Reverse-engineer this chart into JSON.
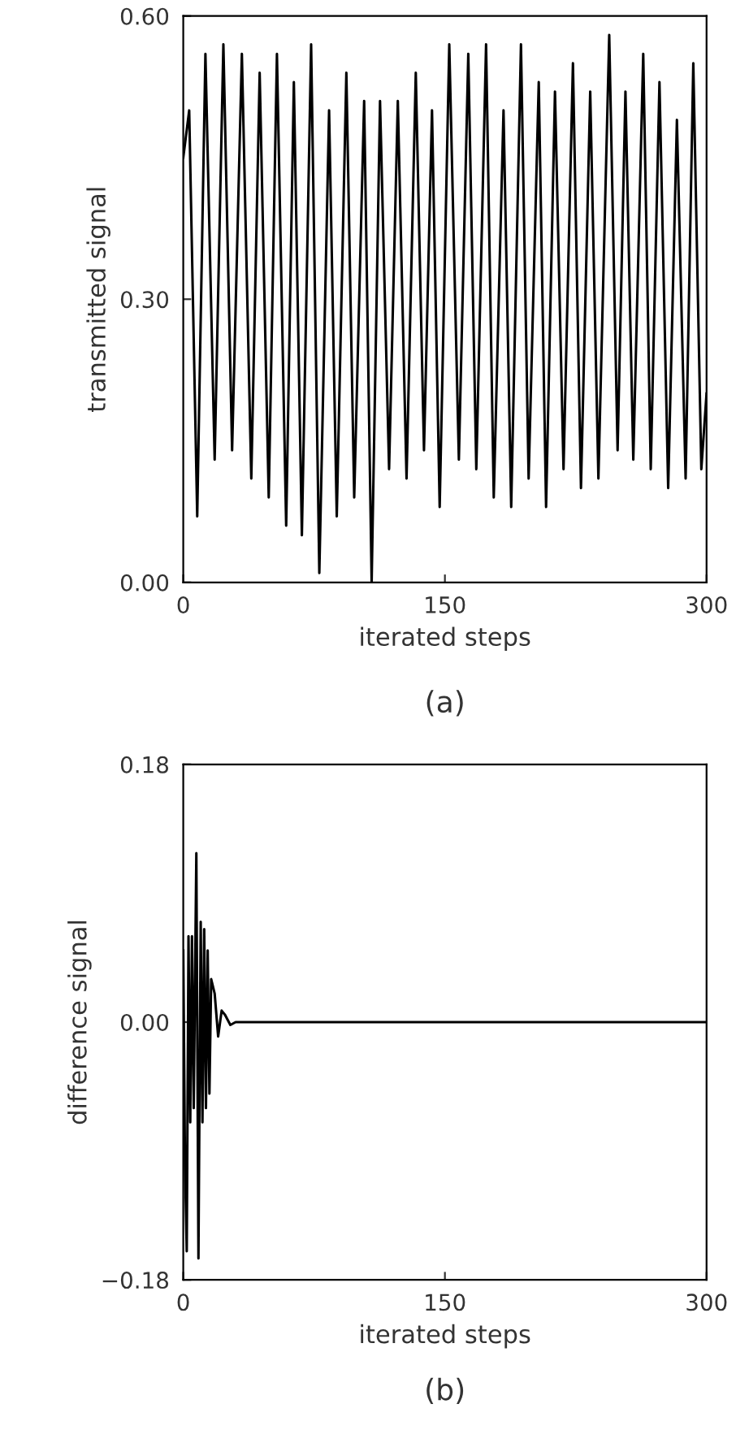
{
  "chart_data": [
    {
      "type": "line",
      "xlabel": "iterated steps",
      "ylabel": "transmitted signal",
      "annotations": [
        "(a)"
      ],
      "xlim": [
        0,
        300
      ],
      "ylim": [
        0,
        0.6
      ],
      "xticks": [
        0,
        150,
        300
      ],
      "yticks": [
        {
          "value": 0,
          "label": "0.00"
        },
        {
          "value": 0.3,
          "label": "0.30"
        },
        {
          "value": 0.6,
          "label": "0.60"
        }
      ],
      "grid": false,
      "legend": false,
      "marker": "none",
      "line_style": "solid",
      "series": [
        {
          "color": "#000000",
          "x": [
            0,
            3.4,
            8,
            12.7,
            18,
            23,
            28,
            33.6,
            39,
            43.8,
            49,
            53.7,
            59,
            63.4,
            68,
            73.3,
            78,
            83.6,
            88,
            93.5,
            98,
            103.7,
            108,
            112.8,
            118,
            123,
            128,
            133.3,
            138,
            142.6,
            147,
            152.5,
            158,
            163.4,
            168,
            173.6,
            178,
            183.6,
            188,
            193.6,
            198,
            203.8,
            208,
            213.1,
            218,
            223.4,
            228,
            233.3,
            238,
            244.2,
            249,
            253.5,
            258,
            263.7,
            268,
            273,
            278,
            283,
            288,
            292.4,
            297,
            300
          ],
          "values": [
            0.45,
            0.5,
            0.07,
            0.56,
            0.13,
            0.57,
            0.14,
            0.56,
            0.11,
            0.54,
            0.09,
            0.56,
            0.06,
            0.53,
            0.05,
            0.57,
            0.01,
            0.5,
            0.07,
            0.54,
            0.09,
            0.51,
            0.0,
            0.51,
            0.12,
            0.51,
            0.11,
            0.54,
            0.14,
            0.5,
            0.08,
            0.57,
            0.13,
            0.56,
            0.12,
            0.57,
            0.09,
            0.5,
            0.08,
            0.57,
            0.11,
            0.53,
            0.08,
            0.52,
            0.12,
            0.55,
            0.1,
            0.52,
            0.11,
            0.58,
            0.14,
            0.52,
            0.13,
            0.56,
            0.12,
            0.53,
            0.1,
            0.49,
            0.11,
            0.55,
            0.12,
            0.2
          ]
        }
      ]
    },
    {
      "type": "line",
      "xlabel": "iterated steps",
      "ylabel": "difference signal",
      "annotations": [
        "(b)"
      ],
      "xlim": [
        0,
        300
      ],
      "ylim": [
        -0.18,
        0.18
      ],
      "xticks": [
        0,
        150,
        300
      ],
      "yticks": [
        {
          "value": -0.18,
          "label": "−0.18"
        },
        {
          "value": 0,
          "label": "0.00"
        },
        {
          "value": 0.18,
          "label": "0.18"
        }
      ],
      "grid": false,
      "legend": false,
      "marker": "none",
      "line_style": "solid",
      "series": [
        {
          "color": "#000000",
          "x": [
            0,
            1,
            2,
            3,
            4,
            5,
            6,
            7.5,
            8.7,
            10,
            11,
            12,
            13,
            14,
            15,
            16,
            18,
            20,
            22,
            24,
            27,
            30,
            300
          ],
          "values": [
            0.05,
            -0.1,
            -0.16,
            0.06,
            -0.07,
            0.06,
            -0.06,
            0.118,
            -0.165,
            0.07,
            -0.07,
            0.065,
            -0.06,
            0.05,
            -0.05,
            0.03,
            0.02,
            -0.01,
            0.008,
            0.005,
            -0.002,
            0.0,
            0.0
          ]
        }
      ]
    }
  ]
}
